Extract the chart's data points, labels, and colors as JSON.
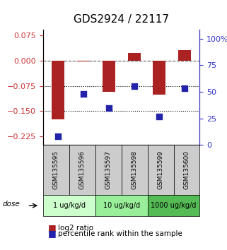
{
  "title": "GDS2924 / 22117",
  "samples": [
    "GSM135595",
    "GSM135596",
    "GSM135597",
    "GSM135598",
    "GSM135599",
    "GSM135600"
  ],
  "log2_ratio": [
    -0.175,
    -0.003,
    -0.092,
    0.022,
    -0.102,
    0.03
  ],
  "percentile_rank": [
    8,
    48,
    35,
    55,
    27,
    53
  ],
  "ylim_left": [
    -0.25,
    0.09
  ],
  "ylim_right": [
    0,
    108
  ],
  "yticks_left": [
    0.075,
    0,
    -0.075,
    -0.15,
    -0.225
  ],
  "yticks_right": [
    100,
    75,
    50,
    25,
    0
  ],
  "hlines": [
    0,
    -0.075,
    -0.15
  ],
  "hline_styles": [
    "dashed",
    "dotted",
    "dotted"
  ],
  "dose_groups": [
    {
      "label": "1 ug/kg/d",
      "color": "#ccffcc"
    },
    {
      "label": "10 ug/kg/d",
      "color": "#99ee99"
    },
    {
      "label": "1000 ug/kg/d",
      "color": "#55bb55"
    }
  ],
  "bar_color": "#aa2222",
  "dot_color": "#2222aa",
  "bar_width": 0.5,
  "dot_size": 40,
  "label_log2": "log2 ratio",
  "label_percentile": "percentile rank within the sample",
  "dose_label": "dose",
  "left_tick_color": "#cc3333",
  "right_tick_color": "#3333cc",
  "sample_box_color": "#cccccc",
  "title_fontsize": 11,
  "tick_fontsize": 8,
  "legend_fontsize": 7.5
}
